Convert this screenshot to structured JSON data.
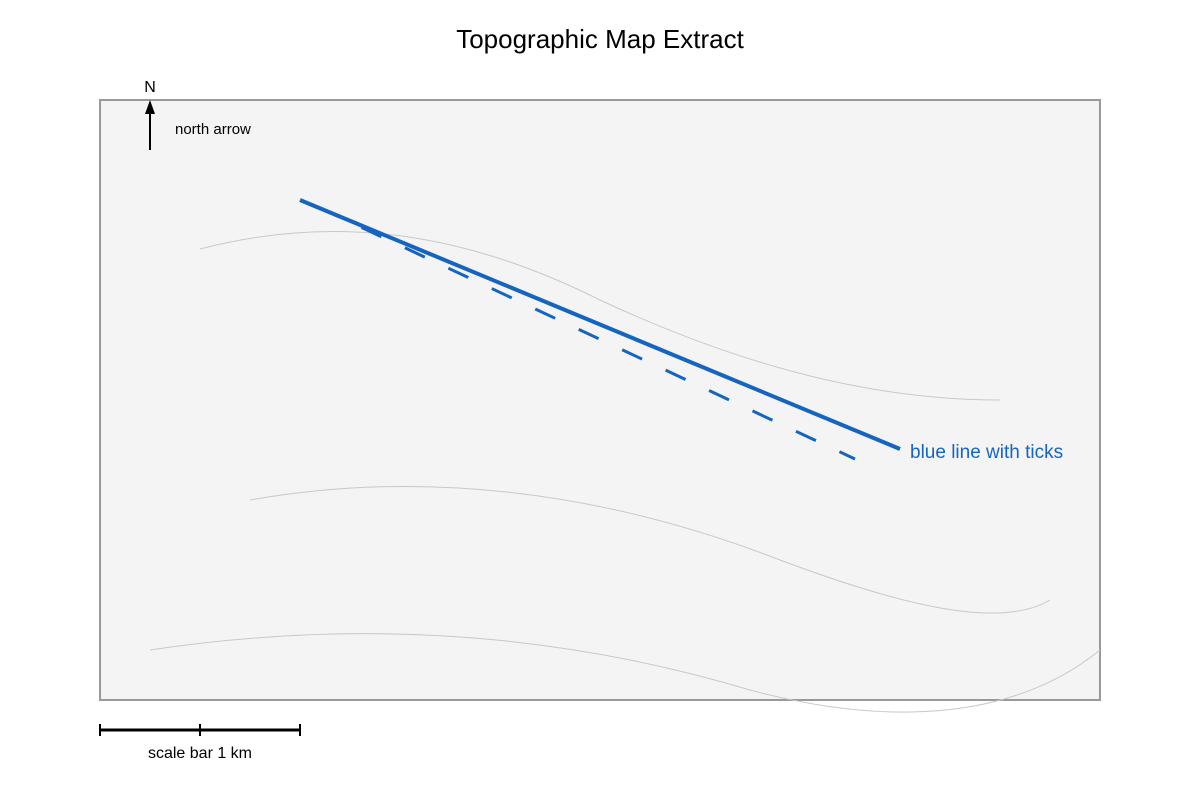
{
  "header": {
    "title": "Topographic Map Extract"
  },
  "map": {
    "north_label": "N",
    "north_caption": "north arrow",
    "feature_label": "blue line with ticks",
    "scale_caption": "scale bar 1 km"
  }
}
